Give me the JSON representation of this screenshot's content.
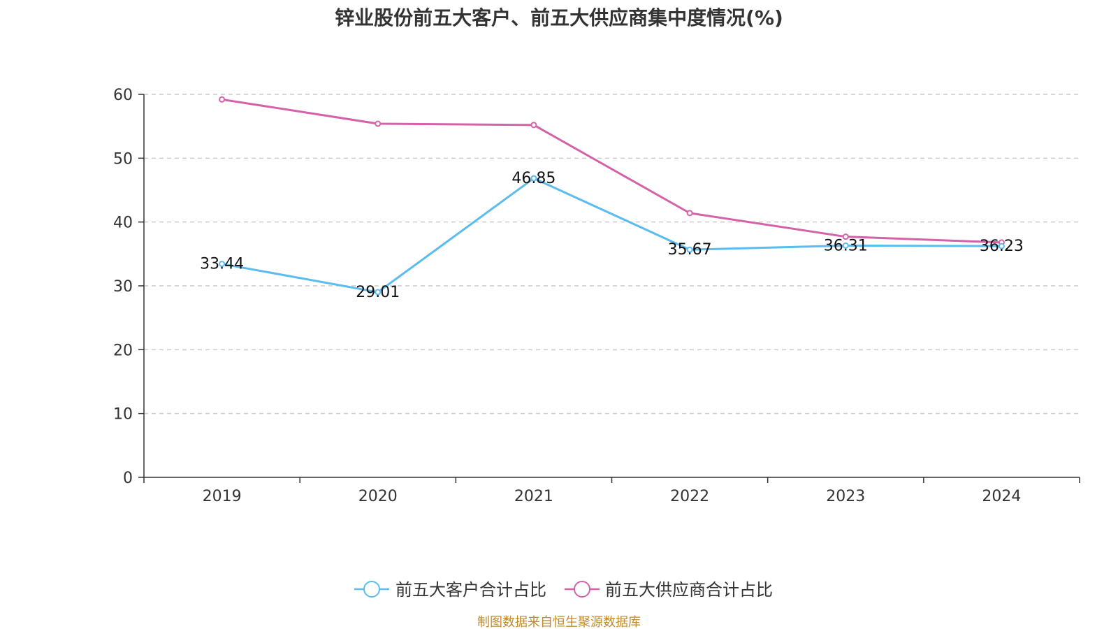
{
  "chart_data": {
    "type": "line",
    "title": "锌业股份前五大客户、前五大供应商集中度情况(%)",
    "categories": [
      "2019",
      "2020",
      "2021",
      "2022",
      "2023",
      "2024"
    ],
    "ylim": [
      0,
      60
    ],
    "yticks": [
      0,
      10,
      20,
      30,
      40,
      50,
      60
    ],
    "grid": true,
    "legend_position": "bottom",
    "series": [
      {
        "name": "前五大客户合计占比",
        "color": "#5bbcef",
        "values": [
          33.44,
          29.01,
          46.85,
          35.67,
          36.31,
          36.23
        ],
        "labels": [
          "33.44",
          "29.01",
          "46.85",
          "35.67",
          "36.31",
          "36.23"
        ]
      },
      {
        "name": "前五大供应商合计占比",
        "color": "#d462a8",
        "values": [
          59.2,
          55.4,
          55.2,
          41.4,
          37.7,
          36.8
        ],
        "labels": []
      }
    ]
  },
  "source_note": "制图数据来自恒生聚源数据库"
}
